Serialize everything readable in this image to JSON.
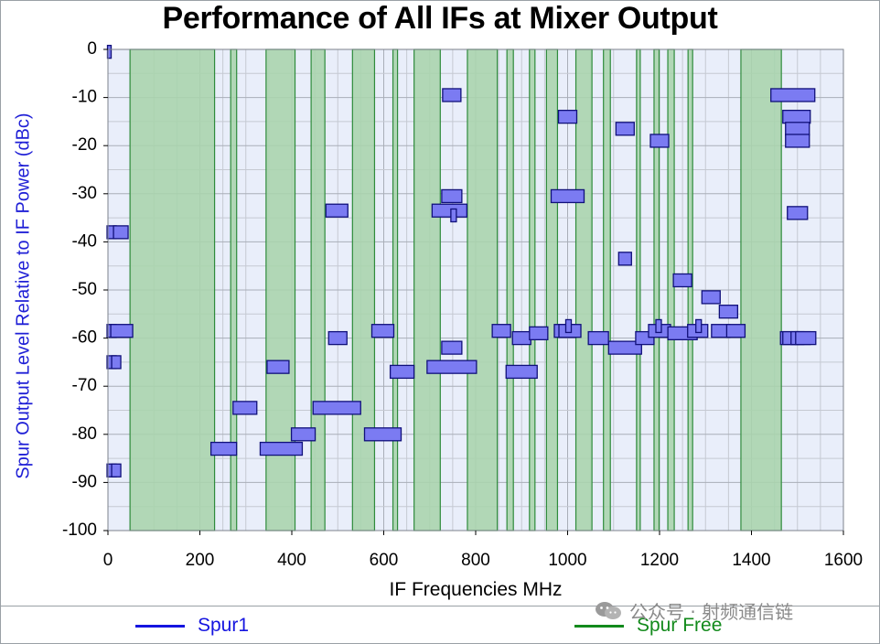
{
  "colors": {
    "spur_fill": "#7b7bf2",
    "spur_stroke": "#10107a",
    "spur_line": "#1515e0",
    "free_fill": "#a8d4ac",
    "free_stroke": "#2e8b3b",
    "free_line": "#138a1c",
    "plot_bg": "#e9eefa",
    "grid": "#c5c9d2"
  },
  "chart_data": {
    "type": "scatter",
    "title": "Performance of All IFs at Mixer Output",
    "xlabel": "IF Frequencies MHz",
    "ylabel": "Spur Output Level Relative to IF Power (dBc)",
    "xlim": [
      0,
      1600
    ],
    "ylim": [
      -100,
      0
    ],
    "x_ticks": [
      0,
      200,
      400,
      600,
      800,
      1000,
      1200,
      1400,
      1600
    ],
    "y_ticks": [
      0,
      -10,
      -20,
      -30,
      -40,
      -50,
      -60,
      -70,
      -80,
      -90,
      -100
    ],
    "grid": true,
    "legend_position": "bottom",
    "legend": [
      {
        "name": "Spur1",
        "color": "#1515e0"
      },
      {
        "name": "Spur Free",
        "color": "#138a1c"
      }
    ],
    "spur_free_bands": [
      [
        48,
        232
      ],
      [
        267,
        280
      ],
      [
        344,
        407
      ],
      [
        442,
        472
      ],
      [
        532,
        580
      ],
      [
        620,
        630
      ],
      [
        666,
        723
      ],
      [
        782,
        847
      ],
      [
        868,
        882
      ],
      [
        917,
        929
      ],
      [
        954,
        978
      ],
      [
        1018,
        1053
      ],
      [
        1078,
        1093
      ],
      [
        1150,
        1158
      ],
      [
        1188,
        1199
      ],
      [
        1218,
        1232
      ],
      [
        1262,
        1272
      ],
      [
        1377,
        1465
      ]
    ],
    "spur_series": {
      "name": "Spur1",
      "points": [
        {
          "x": 3,
          "y": -0.5,
          "w": 4
        },
        {
          "x": 8,
          "y": -38,
          "w": 10
        },
        {
          "x": 28,
          "y": -38,
          "w": 16
        },
        {
          "x": 8,
          "y": -58.5,
          "w": 10
        },
        {
          "x": 30,
          "y": -58.5,
          "w": 24
        },
        {
          "x": 8,
          "y": -65,
          "w": 10
        },
        {
          "x": 18,
          "y": -65,
          "w": 10
        },
        {
          "x": 8,
          "y": -87.5,
          "w": 10
        },
        {
          "x": 18,
          "y": -87.5,
          "w": 10
        },
        {
          "x": 252,
          "y": -83,
          "w": 28
        },
        {
          "x": 298,
          "y": -74.5,
          "w": 26
        },
        {
          "x": 370,
          "y": -66,
          "w": 24
        },
        {
          "x": 377,
          "y": -83,
          "w": 46
        },
        {
          "x": 425,
          "y": -80,
          "w": 26
        },
        {
          "x": 498,
          "y": -33.5,
          "w": 24
        },
        {
          "x": 500,
          "y": -60,
          "w": 20
        },
        {
          "x": 498,
          "y": -74.5,
          "w": 52
        },
        {
          "x": 598,
          "y": -58.5,
          "w": 24
        },
        {
          "x": 598,
          "y": -80,
          "w": 40
        },
        {
          "x": 640,
          "y": -67,
          "w": 26
        },
        {
          "x": 748,
          "y": -9.5,
          "w": 20
        },
        {
          "x": 748,
          "y": -30.5,
          "w": 22
        },
        {
          "x": 743,
          "y": -33.5,
          "w": 38
        },
        {
          "x": 752,
          "y": -34.5,
          "w": 6
        },
        {
          "x": 748,
          "y": -62,
          "w": 22
        },
        {
          "x": 748,
          "y": -66,
          "w": 54
        },
        {
          "x": 856,
          "y": -58.5,
          "w": 20
        },
        {
          "x": 900,
          "y": -60,
          "w": 20
        },
        {
          "x": 900,
          "y": -67,
          "w": 34
        },
        {
          "x": 937,
          "y": -59,
          "w": 20
        },
        {
          "x": 1000,
          "y": -14,
          "w": 20
        },
        {
          "x": 1000,
          "y": -30.5,
          "w": 36
        },
        {
          "x": 995,
          "y": -58.5,
          "w": 24
        },
        {
          "x": 1005,
          "y": -58.5,
          "w": 24
        },
        {
          "x": 1002,
          "y": -57.5,
          "w": 6
        },
        {
          "x": 1067,
          "y": -60,
          "w": 22
        },
        {
          "x": 1125,
          "y": -16.5,
          "w": 20
        },
        {
          "x": 1125,
          "y": -43.5,
          "w": 14
        },
        {
          "x": 1125,
          "y": -62,
          "w": 36
        },
        {
          "x": 1168,
          "y": -60,
          "w": 20
        },
        {
          "x": 1200,
          "y": -19,
          "w": 20
        },
        {
          "x": 1200,
          "y": -58.5,
          "w": 24
        },
        {
          "x": 1198,
          "y": -57.5,
          "w": 6
        },
        {
          "x": 1250,
          "y": -48,
          "w": 20
        },
        {
          "x": 1250,
          "y": -59,
          "w": 32
        },
        {
          "x": 1283,
          "y": -58.5,
          "w": 22
        },
        {
          "x": 1285,
          "y": -57.5,
          "w": 6
        },
        {
          "x": 1312,
          "y": -51.5,
          "w": 20
        },
        {
          "x": 1333,
          "y": -58.5,
          "w": 20
        },
        {
          "x": 1350,
          "y": -54.5,
          "w": 20
        },
        {
          "x": 1366,
          "y": -58.5,
          "w": 20
        },
        {
          "x": 1490,
          "y": -9.5,
          "w": 48
        },
        {
          "x": 1498,
          "y": -14,
          "w": 30
        },
        {
          "x": 1500,
          "y": -16.5,
          "w": 26
        },
        {
          "x": 1500,
          "y": -19,
          "w": 26
        },
        {
          "x": 1500,
          "y": -34,
          "w": 22
        },
        {
          "x": 1483,
          "y": -60,
          "w": 20
        },
        {
          "x": 1498,
          "y": -60,
          "w": 30
        },
        {
          "x": 1500,
          "y": -60,
          "w": 14
        },
        {
          "x": 1518,
          "y": -60,
          "w": 22
        }
      ]
    }
  },
  "watermark": {
    "text": "公众号 · 射频通信链"
  }
}
